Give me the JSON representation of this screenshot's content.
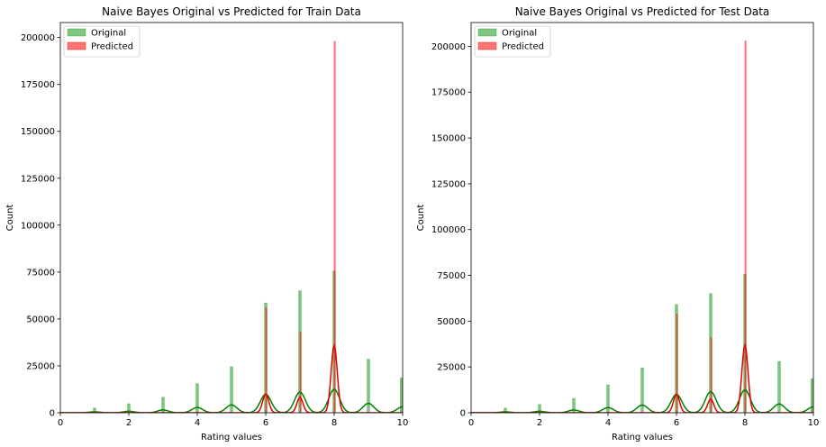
{
  "colors": {
    "original": "#2ca02c",
    "predicted": "#ff0000",
    "original_kde": "#008000",
    "predicted_kde": "#e00000"
  },
  "chart_data": [
    {
      "type": "histogram",
      "title": "Naive Bayes Original vs Predicted for Train Data",
      "xlabel": "Rating values",
      "ylabel": "Count",
      "xlim": [
        0,
        10
      ],
      "ylim": [
        0,
        208000
      ],
      "xticks": [
        0,
        2,
        4,
        6,
        8,
        10
      ],
      "yticks": [
        0,
        25000,
        50000,
        75000,
        100000,
        125000,
        150000,
        175000,
        200000
      ],
      "legend_position": "top-left",
      "grid": false,
      "series": [
        {
          "name": "Original",
          "kind": "hist",
          "x": [
            1,
            2,
            3,
            4,
            5,
            6,
            7,
            8,
            9,
            10
          ],
          "values": [
            2500,
            4800,
            8200,
            15500,
            24500,
            58500,
            65000,
            75500,
            28500,
            18500
          ]
        },
        {
          "name": "Predicted",
          "kind": "hist",
          "x": [
            6,
            7,
            8
          ],
          "values": [
            56000,
            43000,
            198000
          ]
        },
        {
          "kind": "kde",
          "series": "Original",
          "x": [
            1,
            2,
            3,
            4,
            5,
            6,
            7,
            8,
            9,
            10
          ],
          "peaks": [
            500,
            800,
            1500,
            2800,
            4200,
            9800,
            11000,
            12500,
            5000,
            3200
          ]
        },
        {
          "kind": "kde",
          "series": "Predicted",
          "x": [
            6,
            7,
            8
          ],
          "peaks": [
            10000,
            8200,
            36000
          ]
        }
      ]
    },
    {
      "type": "histogram",
      "title": "Naive Bayes Original vs Predicted for Test Data",
      "xlabel": "Rating values",
      "ylabel": "Count",
      "xlim": [
        0,
        10
      ],
      "ylim": [
        0,
        213000
      ],
      "xticks": [
        0,
        2,
        4,
        6,
        8,
        10
      ],
      "yticks": [
        0,
        25000,
        50000,
        75000,
        100000,
        125000,
        150000,
        175000,
        200000
      ],
      "legend_position": "top-left",
      "grid": false,
      "series": [
        {
          "name": "Original",
          "kind": "hist",
          "x": [
            1,
            2,
            3,
            4,
            5,
            6,
            7,
            8,
            9,
            10
          ],
          "values": [
            2500,
            4500,
            7800,
            15200,
            24500,
            59000,
            65000,
            75500,
            28000,
            18500
          ]
        },
        {
          "name": "Predicted",
          "kind": "hist",
          "x": [
            6,
            7,
            8
          ],
          "values": [
            54000,
            41000,
            203000
          ]
        },
        {
          "kind": "kde",
          "series": "Original",
          "x": [
            1,
            2,
            3,
            4,
            5,
            6,
            7,
            8,
            9,
            10
          ],
          "peaks": [
            500,
            800,
            1500,
            2800,
            4200,
            10000,
            11500,
            12500,
            4800,
            3200
          ]
        },
        {
          "kind": "kde",
          "series": "Predicted",
          "x": [
            6,
            7,
            8
          ],
          "peaks": [
            10000,
            7500,
            37000
          ]
        }
      ]
    }
  ]
}
